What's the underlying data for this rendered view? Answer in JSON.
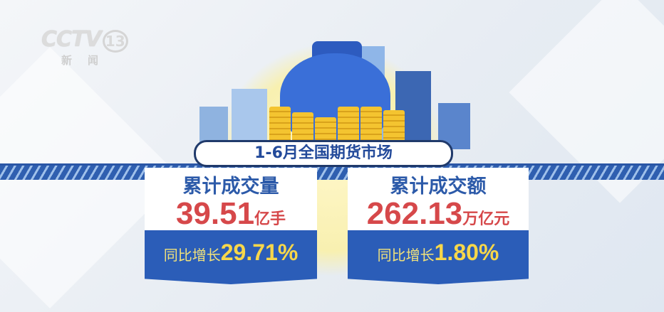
{
  "logo": {
    "brand": "CCTV",
    "channel": "13",
    "name": "新闻"
  },
  "title": "1-6月全国期货市场",
  "cards": [
    {
      "label": "累计成交量",
      "value": "39.51",
      "unit": "亿手",
      "growth_label": "同比增长",
      "growth": "29.71%"
    },
    {
      "label": "累计成交额",
      "value": "262.13",
      "unit": "万亿元",
      "growth_label": "同比增长",
      "growth": "1.80%"
    }
  ],
  "colors": {
    "accent_blue": "#2b5db8",
    "value_red": "#d6484a",
    "growth_yellow": "#f7d74a"
  }
}
